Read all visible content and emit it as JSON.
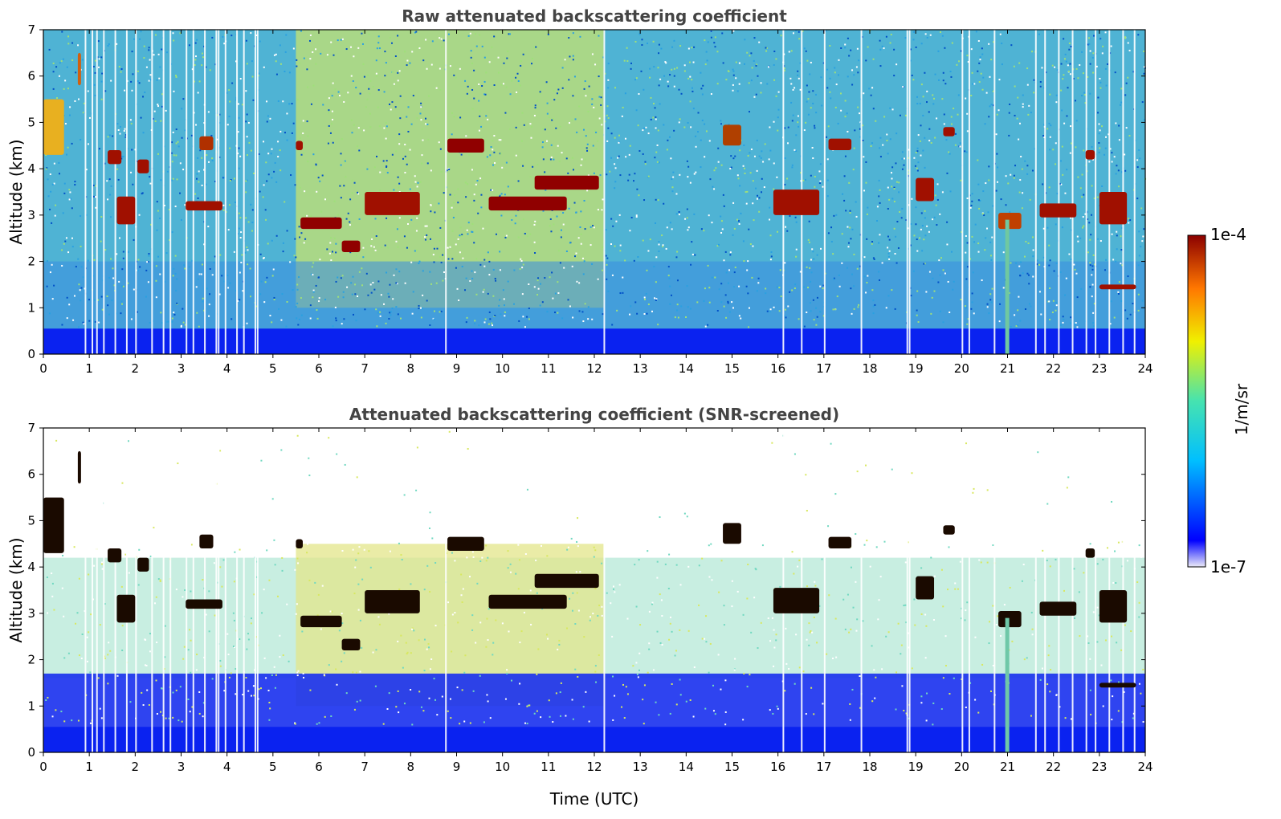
{
  "chart_data": [
    {
      "type": "heatmap",
      "title": "Raw attenuated backscattering coefficient",
      "xlabel": "",
      "ylabel": "Altitude (km)",
      "xlim": [
        0,
        24
      ],
      "ylim": [
        0,
        7
      ],
      "xticks": [
        "0",
        "1",
        "2",
        "3",
        "4",
        "5",
        "6",
        "7",
        "8",
        "9",
        "10",
        "11",
        "12",
        "13",
        "14",
        "15",
        "16",
        "17",
        "18",
        "19",
        "20",
        "21",
        "22",
        "23",
        "24"
      ],
      "yticks": [
        "0",
        "1",
        "2",
        "3",
        "4",
        "5",
        "6",
        "7"
      ],
      "colorscale": "jet",
      "screened": false
    },
    {
      "type": "heatmap",
      "title": "Attenuated backscattering coefficient (SNR-screened)",
      "xlabel": "Time (UTC)",
      "ylabel": "Altitude (km)",
      "xlim": [
        0,
        24
      ],
      "ylim": [
        0,
        7
      ],
      "xticks": [
        "0",
        "1",
        "2",
        "3",
        "4",
        "5",
        "6",
        "7",
        "8",
        "9",
        "10",
        "11",
        "12",
        "13",
        "14",
        "15",
        "16",
        "17",
        "18",
        "19",
        "20",
        "21",
        "22",
        "23",
        "24"
      ],
      "yticks": [
        "0",
        "1",
        "2",
        "3",
        "4",
        "5",
        "6",
        "7"
      ],
      "colorscale": "jet",
      "screened": true
    }
  ],
  "colorbar": {
    "label": "1/m/sr",
    "max_label": "1e-4",
    "min_label": "1e-7",
    "scale": "log",
    "colors": [
      "#ecebf8",
      "#0000ff",
      "#00bfff",
      "#46e3b0",
      "#f0f000",
      "#ff7700",
      "#8b0000"
    ]
  },
  "cloud_features": [
    {
      "t0": 0.0,
      "t1": 0.45,
      "alt0": 4.3,
      "alt1": 5.5,
      "color": "#e8b020"
    },
    {
      "t0": 0.75,
      "t1": 0.82,
      "alt0": 5.8,
      "alt1": 6.5,
      "color": "#d06010"
    },
    {
      "t0": 1.4,
      "t1": 1.7,
      "alt0": 4.1,
      "alt1": 4.4,
      "color": "#a01000"
    },
    {
      "t0": 1.6,
      "t1": 2.0,
      "alt0": 2.8,
      "alt1": 3.4,
      "color": "#a01000"
    },
    {
      "t0": 2.05,
      "t1": 2.3,
      "alt0": 3.9,
      "alt1": 4.2,
      "color": "#a01000"
    },
    {
      "t0": 3.1,
      "t1": 3.9,
      "alt0": 3.1,
      "alt1": 3.3,
      "color": "#a01000"
    },
    {
      "t0": 3.4,
      "t1": 3.7,
      "alt0": 4.4,
      "alt1": 4.7,
      "color": "#b03000"
    },
    {
      "t0": 5.5,
      "t1": 5.65,
      "alt0": 4.4,
      "alt1": 4.6,
      "color": "#a01000"
    },
    {
      "t0": 5.6,
      "t1": 6.5,
      "alt0": 2.7,
      "alt1": 2.95,
      "color": "#900000"
    },
    {
      "t0": 6.5,
      "t1": 6.9,
      "alt0": 2.2,
      "alt1": 2.45,
      "color": "#900000"
    },
    {
      "t0": 7.0,
      "t1": 8.2,
      "alt0": 3.0,
      "alt1": 3.5,
      "color": "#a01000"
    },
    {
      "t0": 8.8,
      "t1": 9.6,
      "alt0": 4.35,
      "alt1": 4.65,
      "color": "#900000"
    },
    {
      "t0": 9.7,
      "t1": 11.4,
      "alt0": 3.1,
      "alt1": 3.4,
      "color": "#900000"
    },
    {
      "t0": 10.7,
      "t1": 12.1,
      "alt0": 3.55,
      "alt1": 3.85,
      "color": "#900000"
    },
    {
      "t0": 14.8,
      "t1": 15.2,
      "alt0": 4.5,
      "alt1": 4.95,
      "color": "#b04000"
    },
    {
      "t0": 15.9,
      "t1": 16.9,
      "alt0": 3.0,
      "alt1": 3.55,
      "color": "#a01000"
    },
    {
      "t0": 17.1,
      "t1": 17.6,
      "alt0": 4.4,
      "alt1": 4.65,
      "color": "#a01000"
    },
    {
      "t0": 19.0,
      "t1": 19.4,
      "alt0": 3.3,
      "alt1": 3.8,
      "color": "#a01000"
    },
    {
      "t0": 19.6,
      "t1": 19.85,
      "alt0": 4.7,
      "alt1": 4.9,
      "color": "#a01000"
    },
    {
      "t0": 20.8,
      "t1": 21.3,
      "alt0": 2.7,
      "alt1": 3.05,
      "color": "#c04000"
    },
    {
      "t0": 21.7,
      "t1": 22.5,
      "alt0": 2.95,
      "alt1": 3.25,
      "color": "#a01000"
    },
    {
      "t0": 22.7,
      "t1": 22.9,
      "alt0": 4.2,
      "alt1": 4.4,
      "color": "#a01000"
    },
    {
      "t0": 23.0,
      "t1": 23.6,
      "alt0": 2.8,
      "alt1": 3.5,
      "color": "#a01000"
    },
    {
      "t0": 23.0,
      "t1": 23.8,
      "alt0": 1.4,
      "alt1": 1.5,
      "color": "#a01000"
    }
  ]
}
